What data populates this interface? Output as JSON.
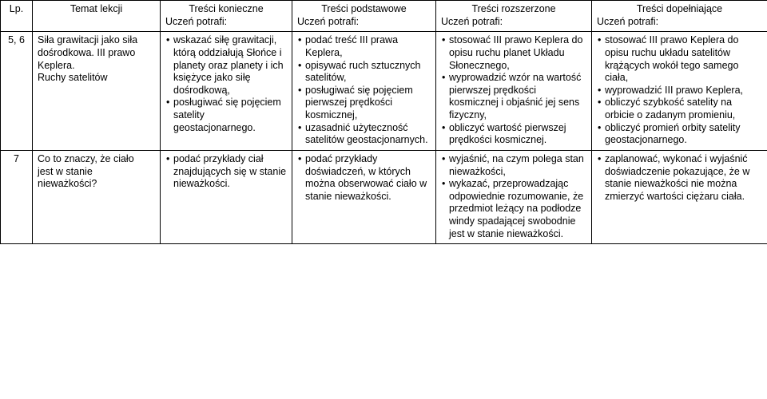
{
  "columns": {
    "lp": "Lp.",
    "topic": "Temat lekcji",
    "c1_title": "Treści konieczne",
    "c2_title": "Treści podstawowe",
    "c3_title": "Treści rozszerzone",
    "c4_title": "Treści dopełniające",
    "sub": "Uczeń potrafi:"
  },
  "rows": [
    {
      "lp": "5, 6",
      "topic_l1": "Siła grawitacji jako siła",
      "topic_l2": "dośrodkowa. III prawo",
      "topic_l3": "Keplera.",
      "topic_l4": "Ruchy satelitów",
      "c1": [
        "wskazać siłę grawitacji, którą oddziałują Słońce i planety oraz planety i ich księżyce jako siłę dośrodkową,",
        "posługiwać się pojęciem satelity geostacjonarnego."
      ],
      "c2": [
        "podać treść III prawa Keplera,",
        "opisywać ruch sztucznych satelitów,",
        "posługiwać się pojęciem pierwszej prędkości kosmicznej,",
        "uzasadnić użyteczność satelitów geostacjonarnych."
      ],
      "c3": [
        "stosować III prawo Keplera  do opisu ruchu planet Układu Słonecznego,",
        "wyprowadzić wzór na wartość pierwszej prędkości kosmicznej i objaśnić jej sens fizyczny,",
        "obliczyć wartość pierwszej prędkości kosmicznej."
      ],
      "c4": [
        "stosować III prawo Keplera  do opisu ruchu układu satelitów krążących wokół tego samego ciała,",
        "wyprowadzić III prawo Keplera,",
        "obliczyć szybkość satelity na orbicie o zadanym promieniu,",
        "obliczyć promień orbity satelity geostacjonarnego."
      ]
    },
    {
      "lp": "7",
      "topic_l1": "Co to znaczy, że ciało",
      "topic_l2": "jest w stanie",
      "topic_l3": "nieważkości?",
      "topic_l4": "",
      "c1": [
        "podać przykłady ciał znajdujących się w stanie nieważkości."
      ],
      "c2": [
        "podać przykłady doświadczeń, w których można obserwować ciało w stanie nieważkości."
      ],
      "c3": [
        "wyjaśnić, na czym polega stan nieważkości,",
        "wykazać, przeprowadzając odpowiednie rozumowanie, że przedmiot leżący na podłodze windy spadającej swobodnie jest w stanie nieważkości."
      ],
      "c4": [
        "zaplanować, wykonać i wyjaśnić doświadczenie pokazujące, że w stanie nieważkości nie można zmierzyć wartości ciężaru ciała."
      ]
    }
  ]
}
